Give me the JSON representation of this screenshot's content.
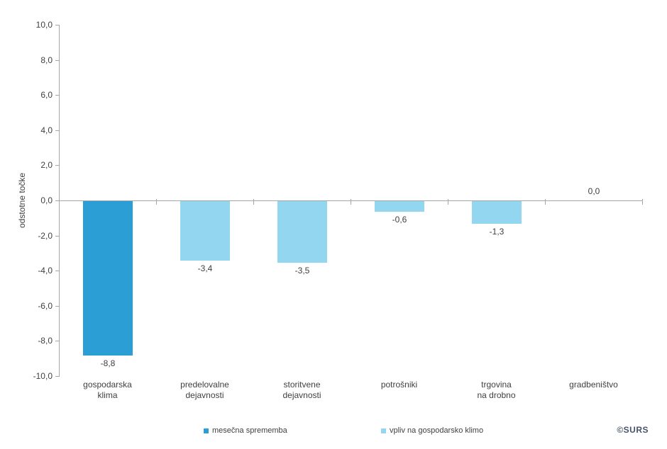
{
  "chart_data": {
    "type": "bar",
    "title": "",
    "xlabel": "",
    "ylabel": "odstotne točke",
    "ylim": [
      -10,
      10
    ],
    "y_tick_step": 2,
    "y_ticks": [
      "10,0",
      "8,0",
      "6,0",
      "4,0",
      "2,0",
      "0,0",
      "-2,0",
      "-4,0",
      "-6,0",
      "-8,0",
      "-10,0"
    ],
    "categories": [
      "gospodarska klima",
      "predelovalne dejavnosti",
      "storitvene dejavnosti",
      "potrošniki",
      "trgovina na drobno",
      "gradbeništvo"
    ],
    "category_lines": [
      [
        "gospodarska",
        "klima"
      ],
      [
        "predelovalne",
        "dejavnosti"
      ],
      [
        "storitvene",
        "dejavnosti"
      ],
      [
        "potrošniki"
      ],
      [
        "trgovina",
        "na drobno"
      ],
      [
        "gradbeništvo"
      ]
    ],
    "values": [
      -8.8,
      -3.4,
      -3.5,
      -0.6,
      -1.3,
      0.0
    ],
    "value_labels": [
      "-8,8",
      "-3,4",
      "-3,5",
      "-0,6",
      "-1,3",
      "0,0"
    ],
    "bar_series": [
      0,
      1,
      1,
      1,
      1,
      1
    ],
    "series": [
      {
        "name": "mesečna sprememba",
        "color": "#2B9FD5",
        "values": [
          -8.8,
          null,
          null,
          null,
          null,
          null
        ]
      },
      {
        "name": "vpliv na gospodarsko klimo",
        "color": "#92D6F0",
        "values": [
          null,
          -3.4,
          -3.5,
          -0.6,
          -1.3,
          0.0
        ]
      }
    ],
    "legend_position": "bottom",
    "grid": false
  },
  "colors": {
    "axis": "#A6A6A6",
    "text": "#404040",
    "credit": "#44546A",
    "background": "#FFFFFF"
  },
  "footer": {
    "credit": "©SURS"
  }
}
